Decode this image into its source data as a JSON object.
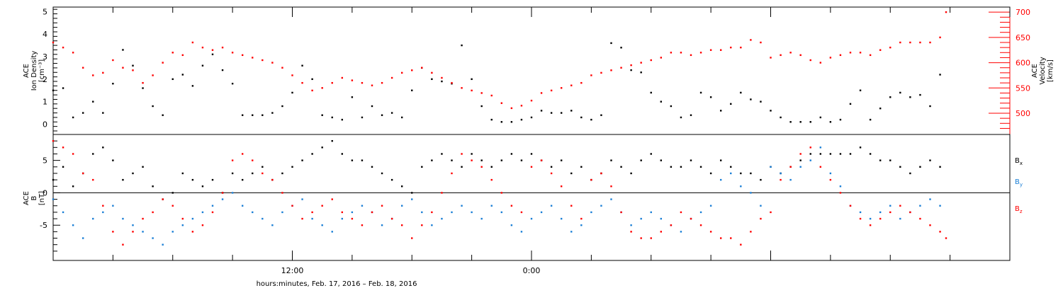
{
  "chart_data": [
    {
      "type": "scatter",
      "panel": "plasma",
      "ylabel_lines": [
        "ACE",
        "Ion Density",
        "[cm⁻³]"
      ],
      "y2label_lines": [
        "ACE",
        "Velocity",
        "[km/s]"
      ],
      "ylim": [
        -0.3,
        5.2
      ],
      "yticks": [
        0,
        1,
        2,
        3,
        4,
        5
      ],
      "ytick_labels": [
        "0",
        "1",
        "2",
        "3",
        "4",
        "5"
      ],
      "y2lim": [
        465,
        710
      ],
      "y2ticks": [
        500,
        550,
        600,
        650,
        700
      ],
      "y2tick_labels": [
        "500",
        "550",
        "600",
        "650",
        "700"
      ],
      "grid": false,
      "series": [
        {
          "axis": "left",
          "color": "#000000",
          "x": [
            0.0,
            0.5,
            1.0,
            1.5,
            2.0,
            2.5,
            3.0,
            3.5,
            4.0,
            4.5,
            5.0,
            5.5,
            6.0,
            6.5,
            7.0,
            7.5,
            8.0,
            8.5,
            9.0,
            9.5,
            10.0,
            10.5,
            11.0,
            11.5,
            12.0,
            12.5,
            13.0,
            13.5,
            14.0,
            14.5,
            15.0,
            15.5,
            16.0,
            16.5,
            17.0,
            17.5,
            18.0,
            18.5,
            19.0,
            19.5,
            20.0,
            20.5,
            21.0,
            21.5,
            22.0,
            22.5,
            23.0,
            23.5,
            24.0,
            24.5,
            25.0,
            25.5,
            26.0,
            26.5,
            27.0,
            27.5,
            28.0,
            28.5,
            29.0,
            29.5,
            30.0,
            30.5,
            31.0,
            31.5,
            32.0,
            32.5,
            33.0,
            33.5,
            34.0,
            34.5,
            35.0,
            35.5,
            36.0,
            36.5,
            37.0,
            37.5,
            38.0,
            38.5
          ],
          "y": [
            1.5,
            1.6,
            0.3,
            0.5,
            1.0,
            0.5,
            1.8,
            3.3,
            2.6,
            1.6,
            0.8,
            0.4,
            2.0,
            2.2,
            1.7,
            2.6,
            3.1,
            2.4,
            1.8,
            0.4,
            0.4,
            0.4,
            0.5,
            0.8,
            1.4,
            2.6,
            2.0,
            0.4,
            0.3,
            0.2,
            1.2,
            0.3,
            0.8,
            0.4,
            0.5,
            0.3,
            1.5,
            2.5,
            2.0,
            1.9,
            1.8,
            3.5,
            2.0,
            0.8,
            0.2,
            0.1,
            0.1,
            0.2,
            0.3,
            0.6,
            0.5,
            0.5,
            0.6,
            0.3,
            0.2,
            0.4,
            3.6,
            3.4,
            2.4,
            2.3,
            1.4,
            1.0,
            0.8,
            0.3,
            0.4,
            1.4,
            1.2,
            0.6,
            0.9,
            1.4,
            1.1,
            1.0,
            0.6,
            0.3,
            0.1,
            0.1,
            0.1,
            0.3
          ],
          "x_extra": [
            39.0,
            39.5,
            40.0,
            40.5,
            41.0,
            41.5,
            42.0,
            42.5,
            43.0,
            43.5,
            44.0,
            44.5
          ],
          "y_extra": [
            0.1,
            0.2,
            0.9,
            1.5,
            0.2,
            0.7,
            1.2,
            1.4,
            1.2,
            1.3,
            0.8,
            2.2
          ]
        },
        {
          "axis": "right",
          "color": "#ff0000",
          "x": [
            0.0,
            0.5,
            1.0,
            1.5,
            2.0,
            2.5,
            3.0,
            3.5,
            4.0,
            4.5,
            5.0,
            5.5,
            6.0,
            6.5,
            7.0,
            7.5,
            8.0,
            8.5,
            9.0,
            9.5,
            10.0,
            10.5,
            11.0,
            11.5,
            12.0,
            12.5,
            13.0,
            13.5,
            14.0,
            14.5,
            15.0,
            15.5,
            16.0,
            16.5,
            17.0,
            17.5,
            18.0,
            18.5,
            19.0,
            19.5,
            20.0,
            20.5,
            21.0,
            21.5,
            22.0,
            22.5,
            23.0,
            23.5,
            24.0,
            24.5,
            25.0,
            25.5,
            26.0,
            26.5,
            27.0,
            27.5,
            28.0,
            28.5,
            29.0,
            29.5,
            30.0,
            30.5,
            31.0,
            31.5,
            32.0,
            32.5,
            33.0,
            33.5,
            34.0,
            34.5,
            35.0,
            35.5,
            36.0,
            36.5,
            37.0,
            37.5,
            38.0,
            38.5,
            39.0,
            39.5,
            40.0,
            40.5,
            41.0,
            41.5,
            42.0,
            42.5,
            43.0,
            43.5,
            44.0,
            44.5,
            44.8
          ],
          "y": [
            640,
            630,
            620,
            590,
            575,
            580,
            605,
            590,
            585,
            560,
            575,
            600,
            620,
            615,
            640,
            630,
            625,
            630,
            620,
            615,
            610,
            605,
            600,
            590,
            575,
            560,
            545,
            550,
            560,
            570,
            565,
            560,
            555,
            560,
            570,
            580,
            585,
            590,
            580,
            570,
            560,
            550,
            545,
            540,
            535,
            520,
            510,
            515,
            525,
            540,
            545,
            550,
            555,
            560,
            575,
            580,
            585,
            590,
            595,
            600,
            605,
            610,
            620,
            620,
            615,
            620,
            625,
            625,
            630,
            630,
            645,
            640,
            610,
            615,
            620,
            615,
            605,
            600,
            610,
            615,
            620,
            620,
            615,
            625,
            630,
            640,
            640,
            640,
            640,
            650,
            700
          ]
        }
      ]
    },
    {
      "type": "scatter",
      "panel": "magnetic_field",
      "ylabel_lines": [
        "ACE",
        "B",
        "[nT]"
      ],
      "ylim": [
        -10,
        9
      ],
      "yticks": [
        -5,
        0,
        5
      ],
      "ytick_labels": [
        "-5",
        "0",
        "5"
      ],
      "zero_line": true,
      "legend": [
        "Bx",
        "By",
        "Bz"
      ],
      "legend_position": "right",
      "grid": false,
      "series": [
        {
          "name": "Bx",
          "color": "#000000",
          "x": [
            0.0,
            0.5,
            1.0,
            1.5,
            2.0,
            2.5,
            3.0,
            3.5,
            4.0,
            4.5,
            5.0,
            5.5,
            6.0,
            6.5,
            7.0,
            7.5,
            8.0,
            8.5,
            9.0,
            9.5,
            10.0,
            10.5,
            11.0,
            11.5,
            12.0,
            12.5,
            13.0,
            13.5,
            14.0,
            14.5,
            15.0,
            15.5,
            16.0,
            16.5,
            17.0,
            17.5,
            18.0,
            18.5,
            19.0,
            19.5,
            20.0,
            20.5,
            21.0,
            21.5,
            22.0,
            22.5,
            23.0,
            23.5,
            24.0,
            24.5,
            25.0,
            25.5,
            26.0,
            26.5,
            27.0,
            27.5,
            28.0,
            28.5,
            29.0,
            29.5,
            30.0,
            30.5,
            31.0,
            31.5,
            32.0,
            32.5,
            33.0,
            33.5,
            34.0,
            34.5,
            35.0,
            35.5,
            36.0,
            36.5,
            37.0,
            37.5,
            38.0,
            38.5,
            39.0,
            39.5,
            40.0,
            40.5,
            41.0,
            41.5,
            42.0,
            42.5,
            43.0,
            43.5,
            44.0,
            44.5
          ],
          "y": [
            2,
            4,
            1,
            3,
            6,
            7,
            5,
            2,
            3,
            4,
            1,
            -1,
            0,
            3,
            2,
            1,
            2,
            0,
            3,
            2,
            3,
            4,
            2,
            3,
            4,
            5,
            6,
            7,
            8,
            6,
            5,
            5,
            4,
            3,
            2,
            1,
            0,
            4,
            5,
            6,
            5,
            4,
            6,
            5,
            4,
            5,
            6,
            5,
            6,
            5,
            4,
            5,
            3,
            4,
            2,
            3,
            5,
            4,
            3,
            5,
            6,
            5,
            4,
            4,
            5,
            4,
            3,
            5,
            4,
            3,
            3,
            2,
            4,
            3,
            4,
            5,
            6,
            6,
            6,
            6,
            6,
            7,
            6,
            5,
            5,
            4,
            3,
            4,
            5,
            4
          ]
        },
        {
          "name": "By",
          "color": "#1a7fd6",
          "x": [
            0.0,
            0.5,
            1.0,
            1.5,
            2.0,
            2.5,
            3.0,
            3.5,
            4.0,
            4.5,
            5.0,
            5.5,
            6.0,
            6.5,
            7.0,
            7.5,
            8.0,
            8.5,
            9.0,
            9.5,
            10.0,
            10.5,
            11.0,
            11.5,
            12.0,
            12.5,
            13.0,
            13.5,
            14.0,
            14.5,
            15.0,
            15.5,
            16.0,
            16.5,
            17.0,
            17.5,
            18.0,
            18.5,
            19.0,
            19.5,
            20.0,
            20.5,
            21.0,
            21.5,
            22.0,
            22.5,
            23.0,
            23.5,
            24.0,
            24.5,
            25.0,
            25.5,
            26.0,
            26.5,
            27.0,
            27.5,
            28.0,
            28.5,
            29.0,
            29.5,
            30.0,
            30.5,
            31.0,
            31.5,
            32.0,
            32.5,
            33.0,
            33.5,
            34.0,
            34.5,
            35.0,
            35.5,
            36.0,
            36.5,
            37.0,
            37.5,
            38.0,
            38.5,
            39.0,
            39.5,
            40.0,
            40.5,
            41.0,
            41.5,
            42.0,
            42.5,
            43.0,
            43.5,
            44.0,
            44.5
          ],
          "y": [
            -1,
            -3,
            -5,
            -7,
            -4,
            -3,
            -2,
            -4,
            -5,
            -6,
            -7,
            -8,
            -6,
            -5,
            -4,
            -3,
            -2,
            -1,
            0,
            -2,
            -3,
            -4,
            -5,
            -3,
            -2,
            -1,
            -4,
            -5,
            -6,
            -4,
            -3,
            -2,
            -3,
            -5,
            -4,
            -2,
            -1,
            -3,
            -5,
            -4,
            -3,
            -2,
            -3,
            -4,
            -2,
            -3,
            -5,
            -6,
            -4,
            -3,
            -2,
            -4,
            -6,
            -5,
            -3,
            -2,
            -1,
            -3,
            -5,
            -4,
            -3,
            -4,
            -5,
            -6,
            -4,
            -3,
            -2,
            2,
            3,
            1,
            0,
            -2,
            4,
            3,
            2,
            4,
            5,
            7,
            3,
            1,
            -2,
            -3,
            -4,
            -3,
            -2,
            -4,
            -3,
            -2,
            -1,
            -2
          ]
        },
        {
          "name": "Bz",
          "color": "#ff0000",
          "x": [
            0.0,
            0.5,
            1.0,
            1.5,
            2.0,
            2.5,
            3.0,
            3.5,
            4.0,
            4.5,
            5.0,
            5.5,
            6.0,
            6.5,
            7.0,
            7.5,
            8.0,
            8.5,
            9.0,
            9.5,
            10.0,
            10.5,
            11.0,
            11.5,
            12.0,
            12.5,
            13.0,
            13.5,
            14.0,
            14.5,
            15.0,
            15.5,
            16.0,
            16.5,
            17.0,
            17.5,
            18.0,
            18.5,
            19.0,
            19.5,
            20.0,
            20.5,
            21.0,
            21.5,
            22.0,
            22.5,
            23.0,
            23.5,
            24.0,
            24.5,
            25.0,
            25.5,
            26.0,
            26.5,
            27.0,
            27.5,
            28.0,
            28.5,
            29.0,
            29.5,
            30.0,
            30.5,
            31.0,
            31.5,
            32.0,
            32.5,
            33.0,
            33.5,
            34.0,
            34.5,
            35.0,
            35.5,
            36.0,
            36.5,
            37.0,
            37.5,
            38.0,
            38.5,
            39.0,
            39.5,
            40.0,
            40.5,
            41.0,
            41.5,
            42.0,
            42.5,
            43.0,
            43.5,
            44.0,
            44.5,
            44.8
          ],
          "y": [
            8,
            7,
            6,
            3,
            2,
            -2,
            -6,
            -8,
            -6,
            -4,
            -3,
            -1,
            -2,
            -4,
            -6,
            -5,
            -3,
            0,
            5,
            6,
            5,
            3,
            2,
            0,
            -2,
            -4,
            -3,
            -2,
            -1,
            -3,
            -4,
            -5,
            -3,
            -2,
            -4,
            -5,
            -7,
            -5,
            -3,
            0,
            3,
            6,
            5,
            4,
            2,
            0,
            -2,
            -3,
            4,
            5,
            3,
            1,
            -2,
            -4,
            2,
            3,
            1,
            -3,
            -6,
            -7,
            -7,
            -6,
            -5,
            -3,
            -4,
            -5,
            -6,
            -7,
            -7,
            -8,
            -6,
            -4,
            -3,
            2,
            4,
            6,
            7,
            4,
            2,
            0,
            -2,
            -4,
            -5,
            -4,
            -3,
            -2,
            -3,
            -4,
            -5,
            -6,
            -7
          ]
        }
      ]
    }
  ],
  "x_axis": {
    "xlim": [
      0,
      48
    ],
    "major_ticks": [
      12,
      24
    ],
    "major_labels": [
      "12:00",
      "0:00"
    ],
    "xlabel": "hours:minutes, Feb. 17, 2016 – Feb. 18, 2016"
  },
  "legend_labels": {
    "bx_main": "B",
    "bx_sub": "x",
    "by_main": "B",
    "by_sub": "y",
    "bz_main": "B",
    "bz_sub": "z"
  }
}
